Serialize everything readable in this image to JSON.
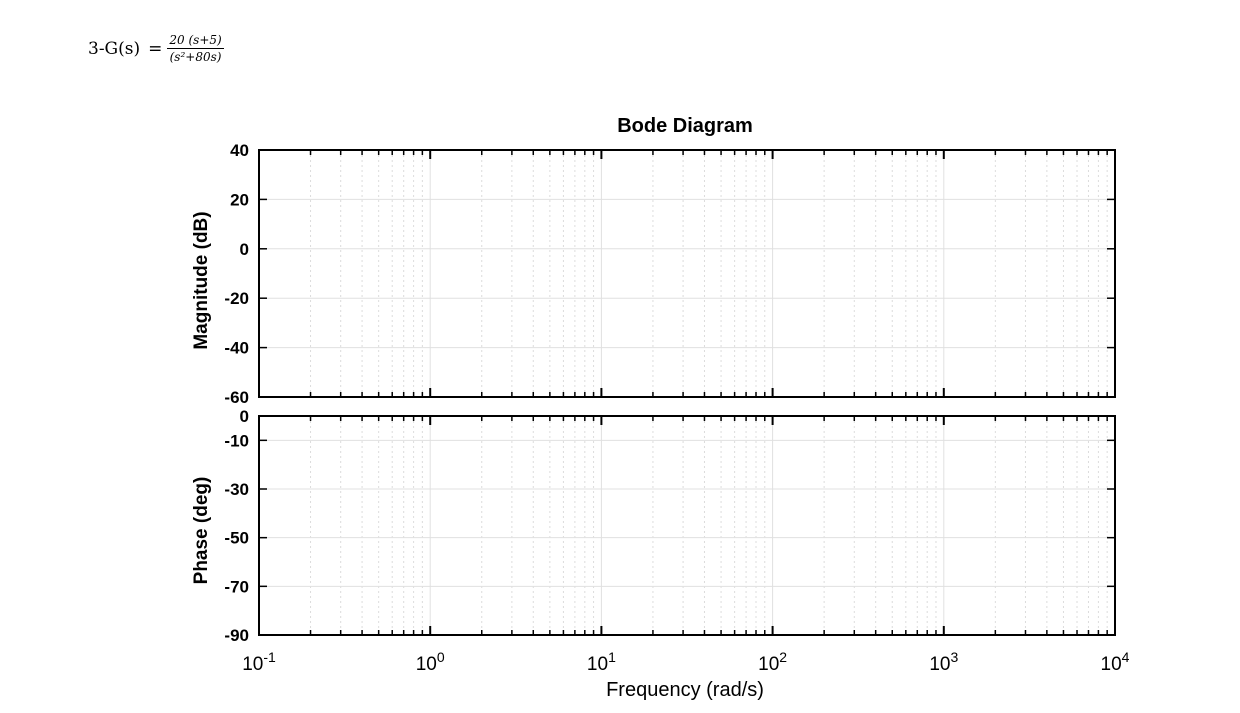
{
  "problem": {
    "lhs": "3-G(s)",
    "eq": "=",
    "numerator": "20 (s+5)",
    "denominator": "(s²+80s)"
  },
  "chart_data": {
    "type": "line",
    "title": "Bode Diagram",
    "xlabel": "Frequency  (rad/s)",
    "xscale": "log",
    "xlim": [
      0.1,
      10000
    ],
    "x_ticks": [
      {
        "base": "10",
        "exp": "-1"
      },
      {
        "base": "10",
        "exp": "0"
      },
      {
        "base": "10",
        "exp": "1"
      },
      {
        "base": "10",
        "exp": "2"
      },
      {
        "base": "10",
        "exp": "3"
      },
      {
        "base": "10",
        "exp": "4"
      }
    ],
    "grid": true,
    "panels": [
      {
        "ylabel": "Magnitude (dB)",
        "ylim": [
          -60,
          40
        ],
        "y_ticks": [
          40,
          20,
          0,
          -20,
          -40,
          -60
        ],
        "y_tick_labels": [
          "40",
          "20",
          "0",
          "-20",
          "-40",
          "-60"
        ],
        "series": []
      },
      {
        "ylabel": "Phase (deg)",
        "ylim": [
          -90,
          0
        ],
        "y_ticks": [
          0,
          -10,
          -30,
          -50,
          -70,
          -90
        ],
        "y_tick_labels": [
          "0",
          "-10",
          "-30",
          "-50",
          "-70",
          "-90"
        ],
        "series": []
      }
    ]
  }
}
